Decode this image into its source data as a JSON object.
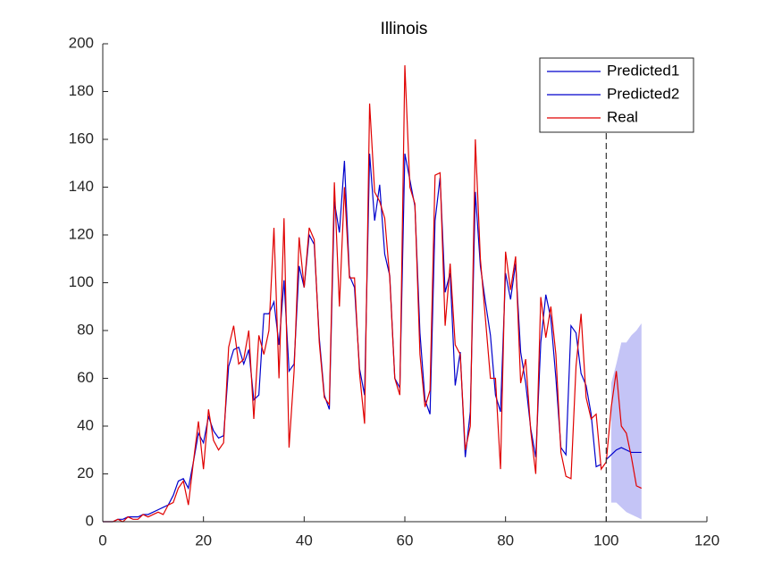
{
  "chart_data": {
    "type": "line",
    "title": "Illinois",
    "x": [
      0,
      1,
      2,
      3,
      4,
      5,
      6,
      7,
      8,
      9,
      10,
      11,
      12,
      13,
      14,
      15,
      16,
      17,
      18,
      19,
      20,
      21,
      22,
      23,
      24,
      25,
      26,
      27,
      28,
      29,
      30,
      31,
      32,
      33,
      34,
      35,
      36,
      37,
      38,
      39,
      40,
      41,
      42,
      43,
      44,
      45,
      46,
      47,
      48,
      49,
      50,
      51,
      52,
      53,
      54,
      55,
      56,
      57,
      58,
      59,
      60,
      61,
      62,
      63,
      64,
      65,
      66,
      67,
      68,
      69,
      70,
      71,
      72,
      73,
      74,
      75,
      76,
      77,
      78,
      79,
      80,
      81,
      82,
      83,
      84,
      85,
      86,
      87,
      88,
      89,
      90,
      91,
      92,
      93,
      94,
      95,
      96,
      97,
      98,
      99,
      100,
      101,
      102,
      103,
      104,
      105,
      106,
      107
    ],
    "series": [
      {
        "name": "Predicted1",
        "color": "#0000cc",
        "values": [
          0,
          0,
          0,
          1,
          1,
          2,
          2,
          2,
          3,
          3,
          4,
          5,
          6,
          7,
          11,
          17,
          18,
          14,
          25,
          37,
          33,
          44,
          38,
          35,
          36,
          65,
          72,
          73,
          66,
          72,
          51,
          53,
          87,
          87,
          92,
          74,
          101,
          63,
          66,
          107,
          98,
          120,
          116,
          77,
          53,
          47,
          134,
          121,
          151,
          103,
          98,
          64,
          53,
          154,
          126,
          141,
          112,
          103,
          60,
          56,
          154,
          143,
          132,
          79,
          51,
          45,
          126,
          144,
          96,
          104,
          57,
          71,
          27,
          46,
          138,
          107,
          92,
          78,
          53,
          46,
          104,
          93,
          108,
          71,
          58,
          39,
          27,
          75,
          95,
          85,
          60,
          31,
          28,
          82,
          79,
          62,
          57,
          45,
          23,
          24,
          null,
          null,
          null,
          null,
          null,
          null,
          null,
          null
        ]
      },
      {
        "name": "Predicted2",
        "color": "#0000cc",
        "values": [
          null,
          null,
          null,
          null,
          null,
          null,
          null,
          null,
          null,
          null,
          null,
          null,
          null,
          null,
          null,
          null,
          null,
          null,
          null,
          null,
          null,
          null,
          null,
          null,
          null,
          null,
          null,
          null,
          null,
          null,
          null,
          null,
          null,
          null,
          null,
          null,
          null,
          null,
          null,
          null,
          null,
          null,
          null,
          null,
          null,
          null,
          null,
          null,
          null,
          null,
          null,
          null,
          null,
          null,
          null,
          null,
          null,
          null,
          null,
          null,
          null,
          null,
          null,
          null,
          null,
          null,
          null,
          null,
          null,
          null,
          null,
          null,
          null,
          null,
          null,
          null,
          null,
          null,
          null,
          null,
          null,
          null,
          null,
          null,
          null,
          null,
          null,
          null,
          null,
          null,
          null,
          null,
          null,
          null,
          null,
          null,
          null,
          null,
          null,
          null,
          26,
          28,
          30,
          31,
          30,
          29,
          29,
          29
        ]
      },
      {
        "name": "Real",
        "color": "#e00000",
        "values": [
          0,
          0,
          0,
          1,
          0,
          2,
          1,
          1,
          3,
          2,
          3,
          4,
          3,
          7,
          8,
          14,
          17,
          7,
          25,
          42,
          22,
          47,
          34,
          30,
          33,
          73,
          82,
          66,
          68,
          80,
          43,
          78,
          70,
          80,
          123,
          60,
          127,
          31,
          63,
          119,
          98,
          123,
          118,
          75,
          52,
          49,
          142,
          90,
          140,
          102,
          102,
          62,
          41,
          175,
          138,
          134,
          127,
          102,
          60,
          53,
          191,
          140,
          133,
          70,
          48,
          55,
          145,
          146,
          82,
          108,
          74,
          70,
          30,
          40,
          160,
          110,
          85,
          60,
          60,
          22,
          113,
          97,
          111,
          58,
          68,
          38,
          20,
          94,
          77,
          90,
          70,
          29,
          19,
          18,
          65,
          87,
          52,
          43,
          45,
          22,
          25,
          48,
          63,
          40,
          37,
          27,
          15,
          14
        ]
      }
    ],
    "band": {
      "color": "#c4c4f6",
      "lower": [
        null,
        null,
        null,
        null,
        null,
        null,
        null,
        null,
        null,
        null,
        null,
        null,
        null,
        null,
        null,
        null,
        null,
        null,
        null,
        null,
        null,
        null,
        null,
        null,
        null,
        null,
        null,
        null,
        null,
        null,
        null,
        null,
        null,
        null,
        null,
        null,
        null,
        null,
        null,
        null,
        null,
        null,
        null,
        null,
        null,
        null,
        null,
        null,
        null,
        null,
        null,
        null,
        null,
        null,
        null,
        null,
        null,
        null,
        null,
        null,
        null,
        null,
        null,
        null,
        null,
        null,
        null,
        null,
        null,
        null,
        null,
        null,
        null,
        null,
        null,
        null,
        null,
        null,
        null,
        null,
        null,
        null,
        null,
        null,
        null,
        null,
        null,
        null,
        null,
        null,
        null,
        null,
        null,
        null,
        null,
        null,
        null,
        null,
        null,
        null,
        null,
        8,
        8,
        6,
        4,
        3,
        2,
        1
      ],
      "upper": [
        null,
        null,
        null,
        null,
        null,
        null,
        null,
        null,
        null,
        null,
        null,
        null,
        null,
        null,
        null,
        null,
        null,
        null,
        null,
        null,
        null,
        null,
        null,
        null,
        null,
        null,
        null,
        null,
        null,
        null,
        null,
        null,
        null,
        null,
        null,
        null,
        null,
        null,
        null,
        null,
        null,
        null,
        null,
        null,
        null,
        null,
        null,
        null,
        null,
        null,
        null,
        null,
        null,
        null,
        null,
        null,
        null,
        null,
        null,
        null,
        null,
        null,
        null,
        null,
        null,
        null,
        null,
        null,
        null,
        null,
        null,
        null,
        null,
        null,
        null,
        null,
        null,
        null,
        null,
        null,
        null,
        null,
        null,
        null,
        null,
        null,
        null,
        null,
        null,
        null,
        null,
        null,
        null,
        null,
        null,
        null,
        null,
        null,
        null,
        null,
        null,
        58,
        66,
        75,
        75,
        78,
        80,
        83
      ]
    },
    "vline": 100,
    "xlim": [
      0,
      120
    ],
    "xticks": [
      0,
      20,
      40,
      60,
      80,
      100,
      120
    ],
    "ylim": [
      0,
      200
    ],
    "yticks": [
      0,
      20,
      40,
      60,
      80,
      100,
      120,
      140,
      160,
      180,
      200
    ],
    "legend": "upper right"
  }
}
